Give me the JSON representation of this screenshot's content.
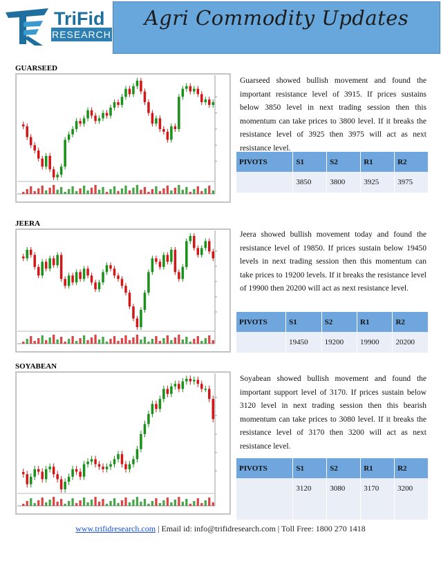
{
  "header": {
    "title": "Agri Commodity Updates",
    "logo_name": "TriFid",
    "logo_sub": "RESEARCH"
  },
  "sections": [
    {
      "label": "GUARSEED",
      "description": "Guarseed showed bullish movement and found the important resistance level of 3915. If prices sustains below 3850 level in next trading session then this momentum can take prices to 3800 level. If it breaks the resistance level of 3925 then 3975 will act as next resistance level.",
      "pivots": {
        "headers": [
          "PIVOTS",
          "S1",
          "S2",
          "R1",
          "R2"
        ],
        "values": [
          "",
          "3850",
          "3800",
          "3925",
          "3975"
        ]
      }
    },
    {
      "label": "JEERA",
      "description": "Jeera showed bullish movement today and found the resistance level of 19850. If prices sustain below 19450 levels in next trading session then this momentum can take prices to 19200 levels. If it breaks the resistance level of 19900 then 20200 will act as next resistance level.",
      "pivots": {
        "headers": [
          "PIVOTS",
          "S1",
          "S2",
          "R1",
          "R2"
        ],
        "values": [
          "",
          "19450",
          "19200",
          "19900",
          "20200"
        ]
      }
    },
    {
      "label": "SOYABEAN",
      "description": "Soyabean showed bullish movement and found the important support level of 3170. If prices sustain below 3120 level in next trading session then this bearish momentum can take prices to 3080 level. If it breaks the resistance level of 3170 then 3200 will act as next resistance level.",
      "pivots": {
        "headers": [
          "PIVOTS",
          "S1",
          "S2",
          "R1",
          "R2"
        ],
        "values": [
          "",
          "3120",
          "3080",
          "3170",
          "3200"
        ]
      }
    }
  ],
  "footer": {
    "website": "www.trifidresearch.com",
    "contact": " | Email id: info@trifidresearch.com | Toll Free: 1800 270 1418"
  },
  "colors": {
    "bull": "#1a8f1a",
    "bear": "#d01818",
    "header_bg": "#67a7dc",
    "pivot_head": "#6ea6dd"
  },
  "chart_data": [
    {
      "type": "candlestick",
      "closes": [
        3835,
        3815,
        3800,
        3790,
        3775,
        3760,
        3780,
        3755,
        3740,
        3745,
        3760,
        3810,
        3820,
        3830,
        3845,
        3840,
        3850,
        3865,
        3855,
        3845,
        3850,
        3860,
        3855,
        3870,
        3880,
        3875,
        3890,
        3905,
        3895,
        3910,
        3920,
        3900,
        3880,
        3860,
        3840,
        3850,
        3830,
        3825,
        3810,
        3835,
        3830,
        3890,
        3905,
        3910,
        3900,
        3905,
        3895,
        3880,
        3885,
        3875,
        3880
      ]
    },
    {
      "type": "candlestick",
      "closes": [
        19700,
        19750,
        19720,
        19650,
        19600,
        19680,
        19640,
        19700,
        19660,
        19720,
        19580,
        19540,
        19600,
        19560,
        19620,
        19580,
        19640,
        19600,
        19560,
        19520,
        19560,
        19620,
        19660,
        19640,
        19600,
        19580,
        19540,
        19500,
        19420,
        19350,
        19300,
        19400,
        19500,
        19620,
        19700,
        19680,
        19650,
        19720,
        19680,
        19750,
        19620,
        19580,
        19650,
        19800,
        19830,
        19760,
        19720,
        19760,
        19800,
        19740,
        19700
      ]
    },
    {
      "type": "candlestick",
      "closes": [
        2980,
        2960,
        2975,
        2990,
        2985,
        2970,
        2990,
        2995,
        2980,
        2970,
        2950,
        2965,
        2975,
        2990,
        2985,
        2975,
        3000,
        3005,
        3010,
        3000,
        2995,
        2990,
        2995,
        3000,
        3010,
        3020,
        3000,
        2990,
        3000,
        3010,
        3030,
        3060,
        3080,
        3100,
        3120,
        3110,
        3130,
        3150,
        3140,
        3155,
        3160,
        3150,
        3165,
        3170,
        3165,
        3168,
        3160,
        3150,
        3150,
        3130,
        3090
      ]
    }
  ]
}
